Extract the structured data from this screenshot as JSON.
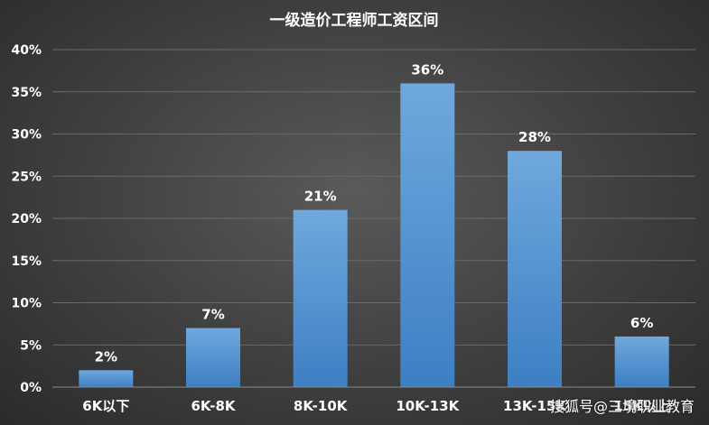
{
  "chart_data": {
    "type": "bar",
    "title": "一级造价工程师工资区间",
    "categories": [
      "6K以下",
      "6K-8K",
      "8K-10K",
      "10K-13K",
      "13K-15K",
      "15K以上"
    ],
    "values": [
      2,
      7,
      21,
      36,
      28,
      6
    ],
    "value_labels": [
      "2%",
      "7%",
      "21%",
      "36%",
      "28%",
      "6%"
    ],
    "xlabel": "",
    "ylabel": "",
    "ylim": [
      0,
      40
    ],
    "yticks": [
      0,
      5,
      10,
      15,
      20,
      25,
      30,
      35,
      40
    ],
    "ytick_labels": [
      "0%",
      "5%",
      "10%",
      "15%",
      "20%",
      "25%",
      "30%",
      "35%",
      "40%"
    ],
    "grid": true,
    "legend": "none",
    "colors": {
      "bar_top": "#6fa8dc",
      "bar_bottom": "#3d7fc4",
      "grid": "#6a6a6a",
      "axis": "#8a8a8a",
      "text": "#ffffff"
    }
  },
  "watermark": "搜狐号@三境职业教育"
}
